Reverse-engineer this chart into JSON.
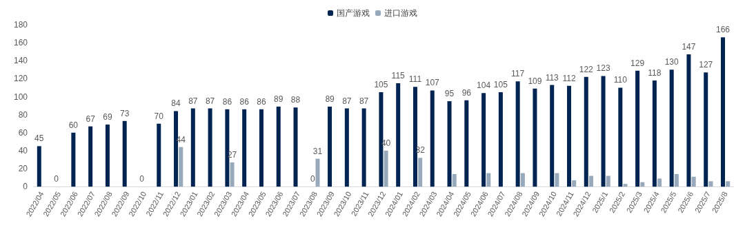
{
  "chart_data": {
    "type": "bar",
    "categories": [
      "2022/04",
      "2022/05",
      "2022/06",
      "2022/07",
      "2022/08",
      "2022/09",
      "2022/10",
      "2022/11",
      "2022/12",
      "2023/01",
      "2023/02",
      "2023/03",
      "2023/04",
      "2023/05",
      "2023/06",
      "2023/07",
      "2023/08",
      "2023/09",
      "2023/10",
      "2023/11",
      "2023/12",
      "2024/01",
      "2024/02",
      "2024/03",
      "2024/04",
      "2024/05",
      "2024/06",
      "2024/07",
      "2024/08",
      "2024/09",
      "2024/10",
      "2024/11",
      "2024/12",
      "2025/1",
      "2025/2",
      "2025/3",
      "2025/4",
      "2025/5",
      "2025/6",
      "2025/7",
      "2025/8"
    ],
    "series": [
      {
        "name": "国产游戏",
        "color": "#002452",
        "values": [
          45,
          0,
          60,
          67,
          69,
          73,
          0,
          70,
          84,
          87,
          87,
          86,
          86,
          86,
          89,
          88,
          0,
          89,
          87,
          87,
          105,
          115,
          111,
          107,
          95,
          96,
          104,
          105,
          117,
          109,
          113,
          112,
          122,
          123,
          110,
          129,
          118,
          130,
          147,
          127,
          166
        ],
        "value_labels": [
          "45",
          "0",
          "60",
          "67",
          "69",
          "73",
          "0",
          "70",
          "84",
          "87",
          "87",
          "86",
          "86",
          "86",
          "89",
          "88",
          "0",
          "89",
          "87",
          "87",
          "105",
          "115",
          "111",
          "107",
          "95",
          "96",
          "104",
          "105",
          "117",
          "109",
          "113",
          "112",
          "122",
          "123",
          "110",
          "129",
          "118",
          "130",
          "147",
          "127",
          "166"
        ]
      },
      {
        "name": "进口游戏",
        "color": "#97a9ba",
        "values": [
          null,
          null,
          null,
          null,
          null,
          null,
          null,
          null,
          44,
          null,
          null,
          27,
          null,
          null,
          null,
          null,
          31,
          null,
          null,
          null,
          40,
          null,
          32,
          null,
          14,
          null,
          15,
          null,
          15,
          null,
          15,
          7,
          12,
          12,
          3,
          5,
          9,
          14,
          11,
          6,
          6
        ],
        "value_labels": [
          null,
          null,
          null,
          null,
          null,
          null,
          null,
          null,
          "44",
          null,
          null,
          "27",
          null,
          null,
          null,
          null,
          "31",
          null,
          null,
          null,
          "40",
          null,
          "32",
          null,
          null,
          null,
          null,
          null,
          null,
          null,
          null,
          null,
          null,
          null,
          null,
          null,
          null,
          null,
          null,
          null,
          null
        ]
      }
    ],
    "ylim": [
      0,
      180
    ],
    "yticks": [
      0,
      20,
      40,
      60,
      80,
      100,
      120,
      140,
      160,
      180
    ],
    "grid": false,
    "legend": "top"
  }
}
